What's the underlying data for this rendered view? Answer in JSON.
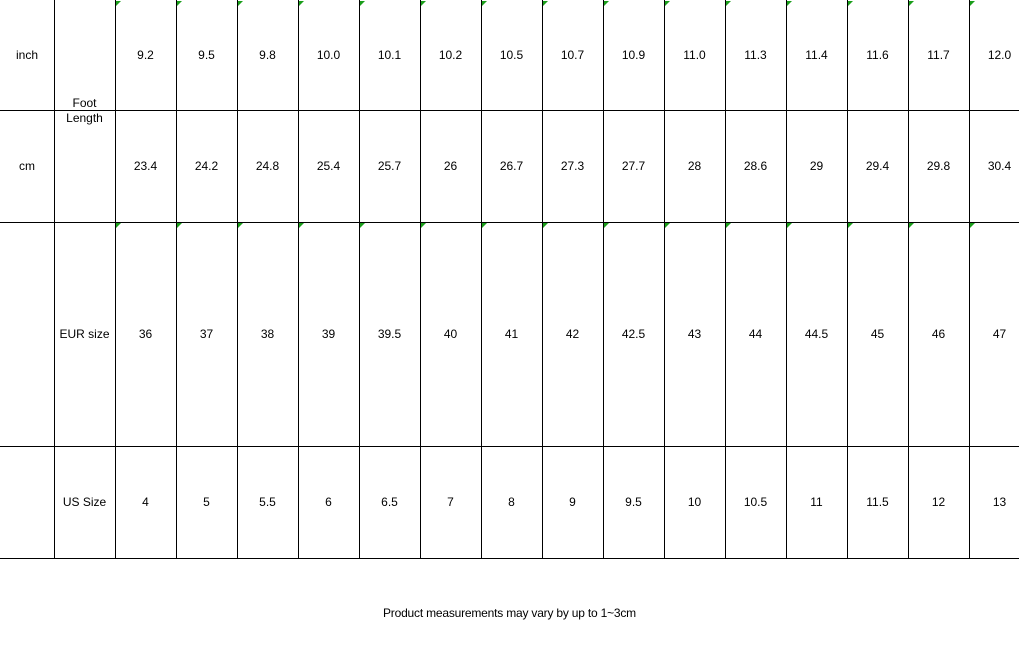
{
  "table": {
    "group_label": "Foot Length",
    "rows": [
      {
        "label": "inch",
        "cells": [
          "9.2",
          "9.5",
          "9.8",
          "10.0",
          "10.1",
          "10.2",
          "10.5",
          "10.7",
          "10.9",
          "11.0",
          "11.3",
          "11.4",
          "11.6",
          "11.7",
          "12.0"
        ]
      },
      {
        "label": "cm",
        "cells": [
          "23.4",
          "24.2",
          "24.8",
          "25.4",
          "25.7",
          "26",
          "26.7",
          "27.3",
          "27.7",
          "28",
          "28.6",
          "29",
          "29.4",
          "29.8",
          "30.4"
        ]
      },
      {
        "label": "EUR size",
        "cells": [
          "36",
          "37",
          "38",
          "39",
          "39.5",
          "40",
          "41",
          "42",
          "42.5",
          "43",
          "44",
          "44.5",
          "45",
          "46",
          "47"
        ]
      },
      {
        "label": "US Size",
        "cells": [
          "4",
          "5",
          "5.5",
          "6",
          "6.5",
          "7",
          "8",
          "9",
          "9.5",
          "10",
          "10.5",
          "11",
          "11.5",
          "12",
          "13"
        ]
      }
    ]
  },
  "note": "Product measurements may vary by up to 1~3cm"
}
